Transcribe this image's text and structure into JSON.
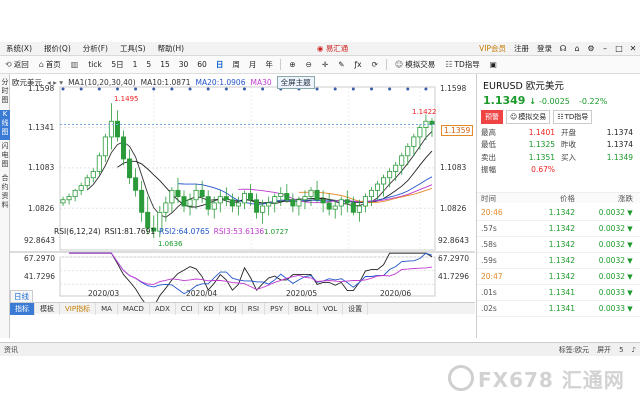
{
  "menu": {
    "items": [
      "系统(X)",
      "报价(Q)",
      "分析(F)",
      "工具(S)",
      "帮助(H)"
    ],
    "app_name": "易汇通",
    "right_items": [
      "VIP会员",
      "注册",
      "登录"
    ]
  },
  "toolbar": {
    "back": "返回",
    "home": "首页",
    "tick": "tick",
    "periods": [
      "5日",
      "1",
      "5",
      "15",
      "30",
      "60",
      "日",
      "周",
      "月",
      "年"
    ],
    "sim": "模拟交易",
    "td": "TD指导"
  },
  "left_tabs": [
    "分时图",
    "K线图",
    "闪电图",
    "合约资料"
  ],
  "chart": {
    "symbol": "欧元美元",
    "ma_label": "MA1(10,20,30,40)",
    "ma10": "MA10:1.0871",
    "ma20": "MA20:1.0906",
    "ma30": "MA30",
    "theme_button": "全屏主题",
    "yticks_price": [
      "1.1598",
      "1.1341",
      "1.1083",
      "1.0826"
    ],
    "annotations": {
      "high1": "1.1495",
      "low1": "1.0636",
      "low2": "1.0727",
      "high2": "1.1422"
    },
    "price_tag": "1.1359",
    "rsi_label": "RSI(6,12,24)",
    "rsi1": "RSI1:81.7691",
    "rsi2": "RSI2:64.0765",
    "rsi3": "RSI3:53.6136",
    "yticks_rsi": [
      "92.8643",
      "67.2970",
      "41.7296"
    ],
    "xlabels": [
      "2020/03",
      "2020/04",
      "2020/05",
      "2020/06"
    ],
    "period_label": "日线",
    "bottom_tabs": [
      "指标",
      "模板",
      "VIP指标",
      "MA",
      "MACD",
      "ADX",
      "CCI",
      "KD",
      "KDJ",
      "RSI",
      "PSY",
      "BOLL",
      "VOL",
      "设置"
    ]
  },
  "chart_data": {
    "type": "candlestick",
    "series": [
      {
        "name": "MA10",
        "latest": 1.0871
      },
      {
        "name": "MA20",
        "latest": 1.0906
      }
    ],
    "ohlc": [
      [
        1.086,
        1.09,
        1.084,
        1.088
      ],
      [
        1.088,
        1.092,
        1.085,
        1.09
      ],
      [
        1.09,
        1.095,
        1.087,
        1.094
      ],
      [
        1.094,
        1.099,
        1.091,
        1.097
      ],
      [
        1.097,
        1.104,
        1.095,
        1.102
      ],
      [
        1.102,
        1.108,
        1.099,
        1.106
      ],
      [
        1.106,
        1.118,
        1.104,
        1.116
      ],
      [
        1.116,
        1.13,
        1.112,
        1.128
      ],
      [
        1.128,
        1.1495,
        1.12,
        1.138
      ],
      [
        1.138,
        1.145,
        1.125,
        1.128
      ],
      [
        1.128,
        1.132,
        1.11,
        1.114
      ],
      [
        1.114,
        1.12,
        1.098,
        1.102
      ],
      [
        1.102,
        1.108,
        1.09,
        1.094
      ],
      [
        1.094,
        1.1,
        1.074,
        1.08
      ],
      [
        1.08,
        1.09,
        1.066,
        1.07
      ],
      [
        1.07,
        1.078,
        1.0636,
        1.068
      ],
      [
        1.068,
        1.084,
        1.064,
        1.08
      ],
      [
        1.08,
        1.09,
        1.074,
        1.086
      ],
      [
        1.086,
        1.096,
        1.08,
        1.094
      ],
      [
        1.094,
        1.102,
        1.086,
        1.09
      ],
      [
        1.09,
        1.094,
        1.08,
        1.084
      ],
      [
        1.084,
        1.092,
        1.078,
        1.088
      ],
      [
        1.088,
        1.098,
        1.082,
        1.094
      ],
      [
        1.094,
        1.1,
        1.086,
        1.09
      ],
      [
        1.09,
        1.094,
        1.078,
        1.082
      ],
      [
        1.082,
        1.09,
        1.076,
        1.086
      ],
      [
        1.086,
        1.094,
        1.08,
        1.09
      ],
      [
        1.09,
        1.096,
        1.084,
        1.088
      ],
      [
        1.088,
        1.092,
        1.08,
        1.084
      ],
      [
        1.084,
        1.09,
        1.078,
        1.086
      ],
      [
        1.086,
        1.094,
        1.082,
        1.092
      ],
      [
        1.092,
        1.098,
        1.084,
        1.088
      ],
      [
        1.088,
        1.092,
        1.076,
        1.08
      ],
      [
        1.08,
        1.088,
        1.0727,
        1.084
      ],
      [
        1.084,
        1.09,
        1.078,
        1.086
      ],
      [
        1.086,
        1.092,
        1.08,
        1.09
      ],
      [
        1.09,
        1.096,
        1.084,
        1.092
      ],
      [
        1.092,
        1.098,
        1.086,
        1.088
      ],
      [
        1.088,
        1.092,
        1.08,
        1.084
      ],
      [
        1.084,
        1.09,
        1.078,
        1.088
      ],
      [
        1.088,
        1.094,
        1.082,
        1.09
      ],
      [
        1.09,
        1.096,
        1.084,
        1.094
      ],
      [
        1.094,
        1.1,
        1.086,
        1.088
      ],
      [
        1.088,
        1.094,
        1.08,
        1.086
      ],
      [
        1.086,
        1.092,
        1.078,
        1.082
      ],
      [
        1.082,
        1.088,
        1.076,
        1.084
      ],
      [
        1.084,
        1.09,
        1.078,
        1.088
      ],
      [
        1.088,
        1.094,
        1.08,
        1.086
      ],
      [
        1.086,
        1.09,
        1.078,
        1.08
      ],
      [
        1.08,
        1.088,
        1.074,
        1.084
      ],
      [
        1.084,
        1.092,
        1.08,
        1.09
      ],
      [
        1.09,
        1.096,
        1.084,
        1.094
      ],
      [
        1.094,
        1.1,
        1.088,
        1.098
      ],
      [
        1.098,
        1.104,
        1.09,
        1.102
      ],
      [
        1.102,
        1.108,
        1.096,
        1.106
      ],
      [
        1.106,
        1.112,
        1.1,
        1.11
      ],
      [
        1.11,
        1.118,
        1.104,
        1.116
      ],
      [
        1.116,
        1.124,
        1.11,
        1.122
      ],
      [
        1.122,
        1.13,
        1.116,
        1.128
      ],
      [
        1.128,
        1.136,
        1.12,
        1.134
      ],
      [
        1.134,
        1.1422,
        1.126,
        1.138
      ],
      [
        1.138,
        1.14,
        1.128,
        1.1359
      ]
    ],
    "yticks": [
      1.1598,
      1.1341,
      1.1083,
      1.0826
    ],
    "rsi": {
      "RSI1": 81.7691,
      "RSI2": 64.0765,
      "RSI3": 53.6136,
      "yticks": [
        92.8643,
        67.297,
        41.7296
      ]
    },
    "xlabels": [
      "2020/03",
      "2020/04",
      "2020/05",
      "2020/06"
    ]
  },
  "quote": {
    "symbol": "EURUSD",
    "name": "欧元美元",
    "price": "1.1349",
    "change": "-0.0025",
    "pct": "-0.22%",
    "buttons": {
      "alert": "预警",
      "sim": "模拟交易",
      "td": "TD指导"
    },
    "rows": [
      {
        "k": "最高",
        "v": "1.1401",
        "k2": "开盘",
        "v2": "1.1374"
      },
      {
        "k": "最低",
        "v": "1.1325",
        "k2": "昨收",
        "v2": "1.1374"
      },
      {
        "k": "卖出",
        "v": "1.1351",
        "k2": "买入",
        "v2": "1.1349"
      },
      {
        "k": "振幅",
        "v": "0.67%",
        "k2": "",
        "v2": ""
      }
    ],
    "ticks_header": {
      "time": "时间",
      "price": "价格",
      "change": "涨跌"
    },
    "ticks": [
      {
        "t": "20:46",
        "p": "1.1342",
        "c": "0.0032"
      },
      {
        "t": ".57s",
        "p": "1.1342",
        "c": "0.0032"
      },
      {
        "t": ".58s",
        "p": "1.1342",
        "c": "0.0032"
      },
      {
        "t": ".59s",
        "p": "1.1342",
        "c": "0.0032"
      },
      {
        "t": "20:47",
        "p": "1.1342",
        "c": "0.0032"
      },
      {
        "t": ".01s",
        "p": "1.1341",
        "c": "0.0033"
      },
      {
        "t": ".02s",
        "p": "1.1341",
        "c": "0.0033"
      }
    ]
  },
  "status": {
    "left": "资讯",
    "mid": "标签:欧元",
    "right": "屏开",
    "right2": "5"
  },
  "watermark": "FX678 汇通网"
}
